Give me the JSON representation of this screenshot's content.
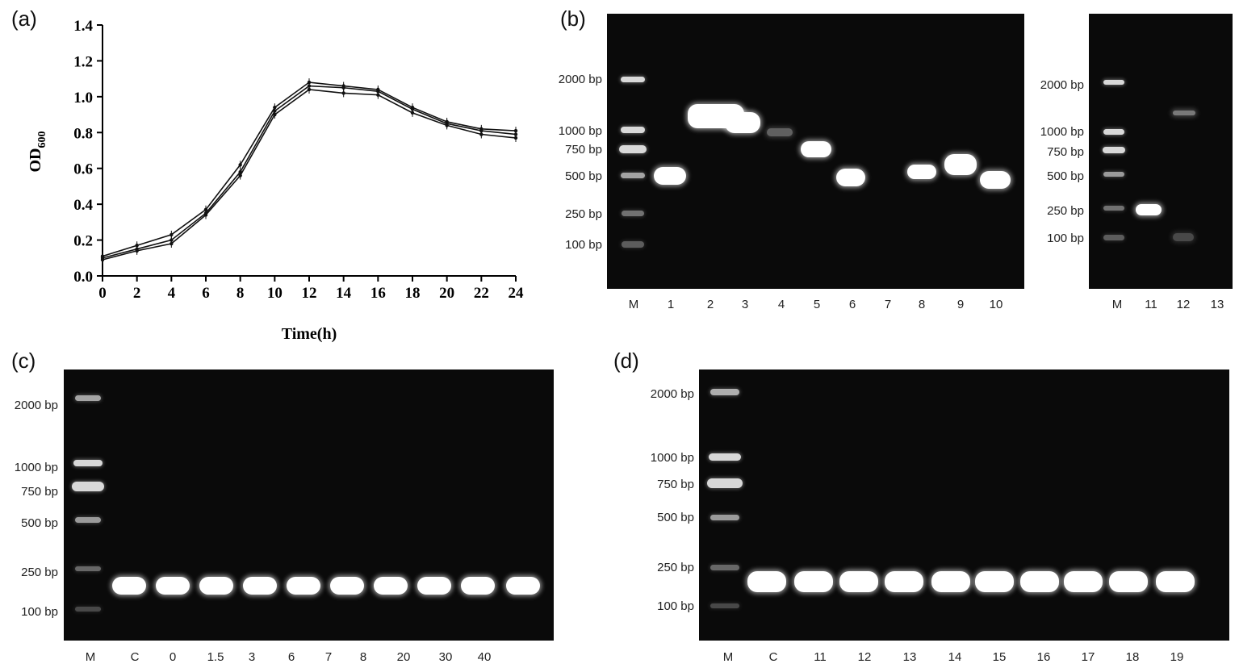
{
  "panels": {
    "a": "(a)",
    "b": "(b)",
    "c": "(c)",
    "d": "(d)"
  },
  "chart_data": {
    "type": "line",
    "xlabel": "Time(h)",
    "ylabel": "OD",
    "ylabel_sub": "600",
    "xlim": [
      0,
      24
    ],
    "ylim": [
      0.0,
      1.4
    ],
    "xticks": [
      0,
      2,
      4,
      6,
      8,
      10,
      12,
      14,
      16,
      18,
      20,
      22,
      24
    ],
    "yticks": [
      "0.0",
      "0.2",
      "0.4",
      "0.6",
      "0.8",
      "1.0",
      "1.2",
      "1.4"
    ],
    "x": [
      0,
      2,
      4,
      6,
      8,
      10,
      12,
      14,
      16,
      18,
      20,
      22,
      24
    ],
    "series": [
      {
        "values": [
          0.11,
          0.17,
          0.23,
          0.37,
          0.62,
          0.94,
          1.08,
          1.06,
          1.04,
          0.94,
          0.86,
          0.82,
          0.81
        ]
      },
      {
        "values": [
          0.1,
          0.15,
          0.2,
          0.35,
          0.58,
          0.92,
          1.06,
          1.05,
          1.03,
          0.93,
          0.85,
          0.81,
          0.79
        ]
      },
      {
        "values": [
          0.09,
          0.14,
          0.18,
          0.34,
          0.56,
          0.9,
          1.04,
          1.02,
          1.01,
          0.91,
          0.84,
          0.79,
          0.77
        ]
      }
    ]
  },
  "gel_b": {
    "sizes": [
      "2000 bp",
      "1000 bp",
      "750 bp",
      "500 bp",
      "250 bp",
      "100 bp"
    ],
    "lanes": [
      "M",
      "1",
      "2",
      "3",
      "4",
      "5",
      "6",
      "7",
      "8",
      "9",
      "10"
    ]
  },
  "gel_b2": {
    "sizes": [
      "2000 bp",
      "1000 bp",
      "750 bp",
      "500 bp",
      "250 bp",
      "100 bp"
    ],
    "lanes": [
      "M",
      "11",
      "12",
      "13"
    ]
  },
  "gel_c": {
    "sizes": [
      "2000 bp",
      "1000 bp",
      "750 bp",
      "500 bp",
      "250 bp",
      "100 bp"
    ],
    "lanes": [
      "M",
      "C",
      "0",
      "1.5",
      "3",
      "6",
      "7",
      "8",
      "20",
      "30",
      "40"
    ]
  },
  "gel_d": {
    "sizes": [
      "2000 bp",
      "1000 bp",
      "750 bp",
      "500 bp",
      "250 bp",
      "100 bp"
    ],
    "lanes": [
      "M",
      "C",
      "11",
      "12",
      "13",
      "14",
      "15",
      "16",
      "17",
      "18",
      "19"
    ]
  }
}
